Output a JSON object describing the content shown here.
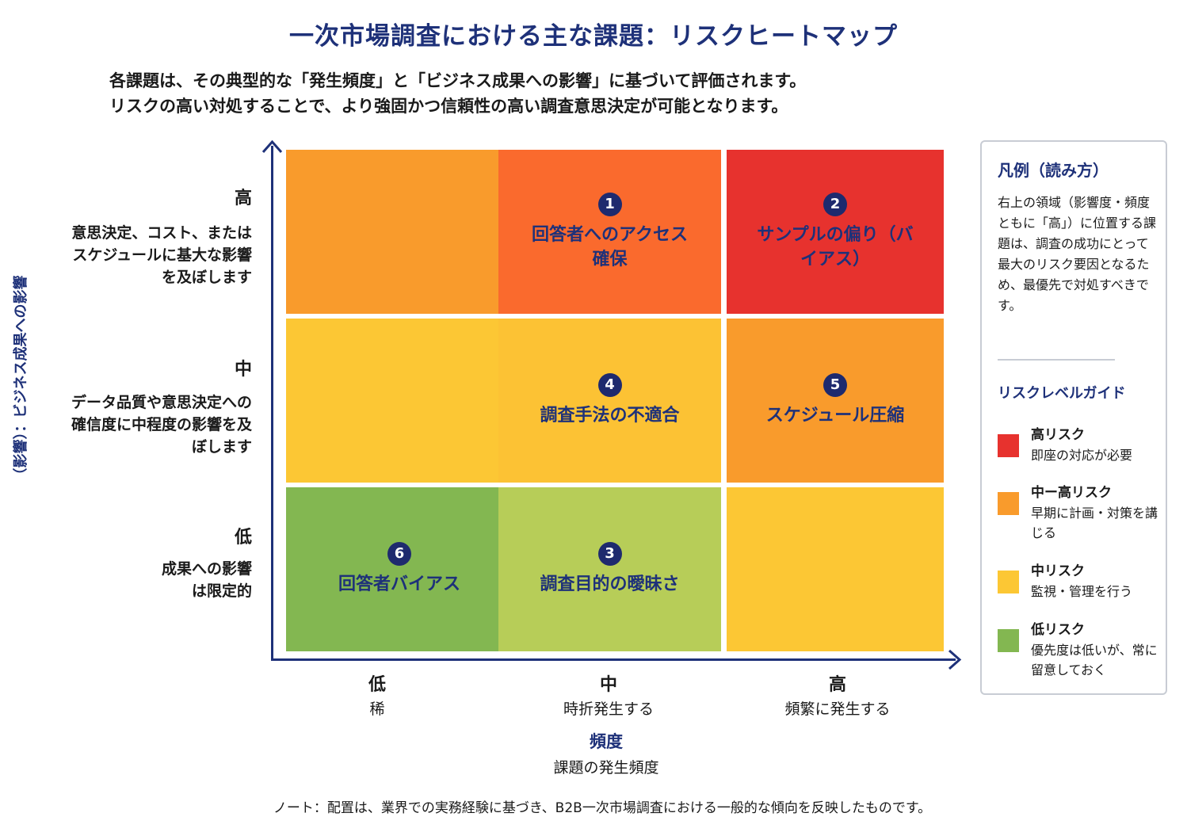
{
  "title": "一次市場調査における主な課題：リスクヒートマップ",
  "subtitle": {
    "line1": "各課題は、その典型的な「発生頻度」と「ビジネス成果への影響」に基づいて評価されます。",
    "line2": "リスクの高い対処することで、より強固かつ信頼性の高い調査意思決定が可能となります。"
  },
  "y_axis": {
    "title": "（影響）：ビジネス成果への影響",
    "levels": [
      {
        "label": "高",
        "desc": "意思決定、コスト、またはスケジュールに基大な影響を及ぼします"
      },
      {
        "label": "中",
        "desc": "データ品質や意思決定への確信度に中程度の影響を及ぼします"
      },
      {
        "label": "低",
        "desc": "成果への影響は限定的"
      }
    ]
  },
  "x_axis": {
    "title": "頻度",
    "subtitle": "課題の発生頻度",
    "levels": [
      {
        "label": "低",
        "desc": "稀"
      },
      {
        "label": "中",
        "desc": "時折発生する"
      },
      {
        "label": "高",
        "desc": "頻繁に発生する"
      }
    ]
  },
  "cells": [
    {
      "row": "高",
      "col": "低",
      "number": "",
      "label": "",
      "color": "#f99b2c"
    },
    {
      "row": "高",
      "col": "中",
      "number": "1",
      "label": "回答者へのアクセス確保",
      "color": "#fa6a2d"
    },
    {
      "row": "高",
      "col": "高",
      "number": "2",
      "label": "サンプルの偏り（バイアス）",
      "color": "#e7322e"
    },
    {
      "row": "中",
      "col": "低",
      "number": "",
      "label": "",
      "color": "#fcc734"
    },
    {
      "row": "中",
      "col": "中",
      "number": "4",
      "label": "調査手法の不適合",
      "color": "#fcc234"
    },
    {
      "row": "中",
      "col": "高",
      "number": "5",
      "label": "スケジュール圧縮",
      "color": "#f99b2c"
    },
    {
      "row": "低",
      "col": "低",
      "number": "6",
      "label": "回答者バイアス",
      "color": "#83b751"
    },
    {
      "row": "低",
      "col": "中",
      "number": "3",
      "label": "調査目的の曖昧さ",
      "color": "#b7cd58"
    },
    {
      "row": "低",
      "col": "高",
      "number": "",
      "label": "",
      "color": "#fcc734"
    }
  ],
  "legend": {
    "title": "凡例（読み方）",
    "description": "右上の領域（影響度・頻度ともに「高」）に位置する課題は、調査の成功にとって最大のリスク要因となるため、最優先で対処すべきです。",
    "guide_title": "リスクレベルガイド",
    "items": [
      {
        "name": "高リスク",
        "desc": "即座の対応が必要",
        "color": "#e7322e"
      },
      {
        "name": "中ー高リスク",
        "desc": "早期に計画・対策を講じる",
        "color": "#f99b2c"
      },
      {
        "name": "中リスク",
        "desc": "監視・管理を行う",
        "color": "#fcc734"
      },
      {
        "name": "低リスク",
        "desc": "優先度は低いが、常に留意しておく",
        "color": "#83b751"
      }
    ]
  },
  "note": "ノート：配置は、業界での実務経験に基づき、B2B一次市場調査における一般的な傾向を反映したものです。"
}
